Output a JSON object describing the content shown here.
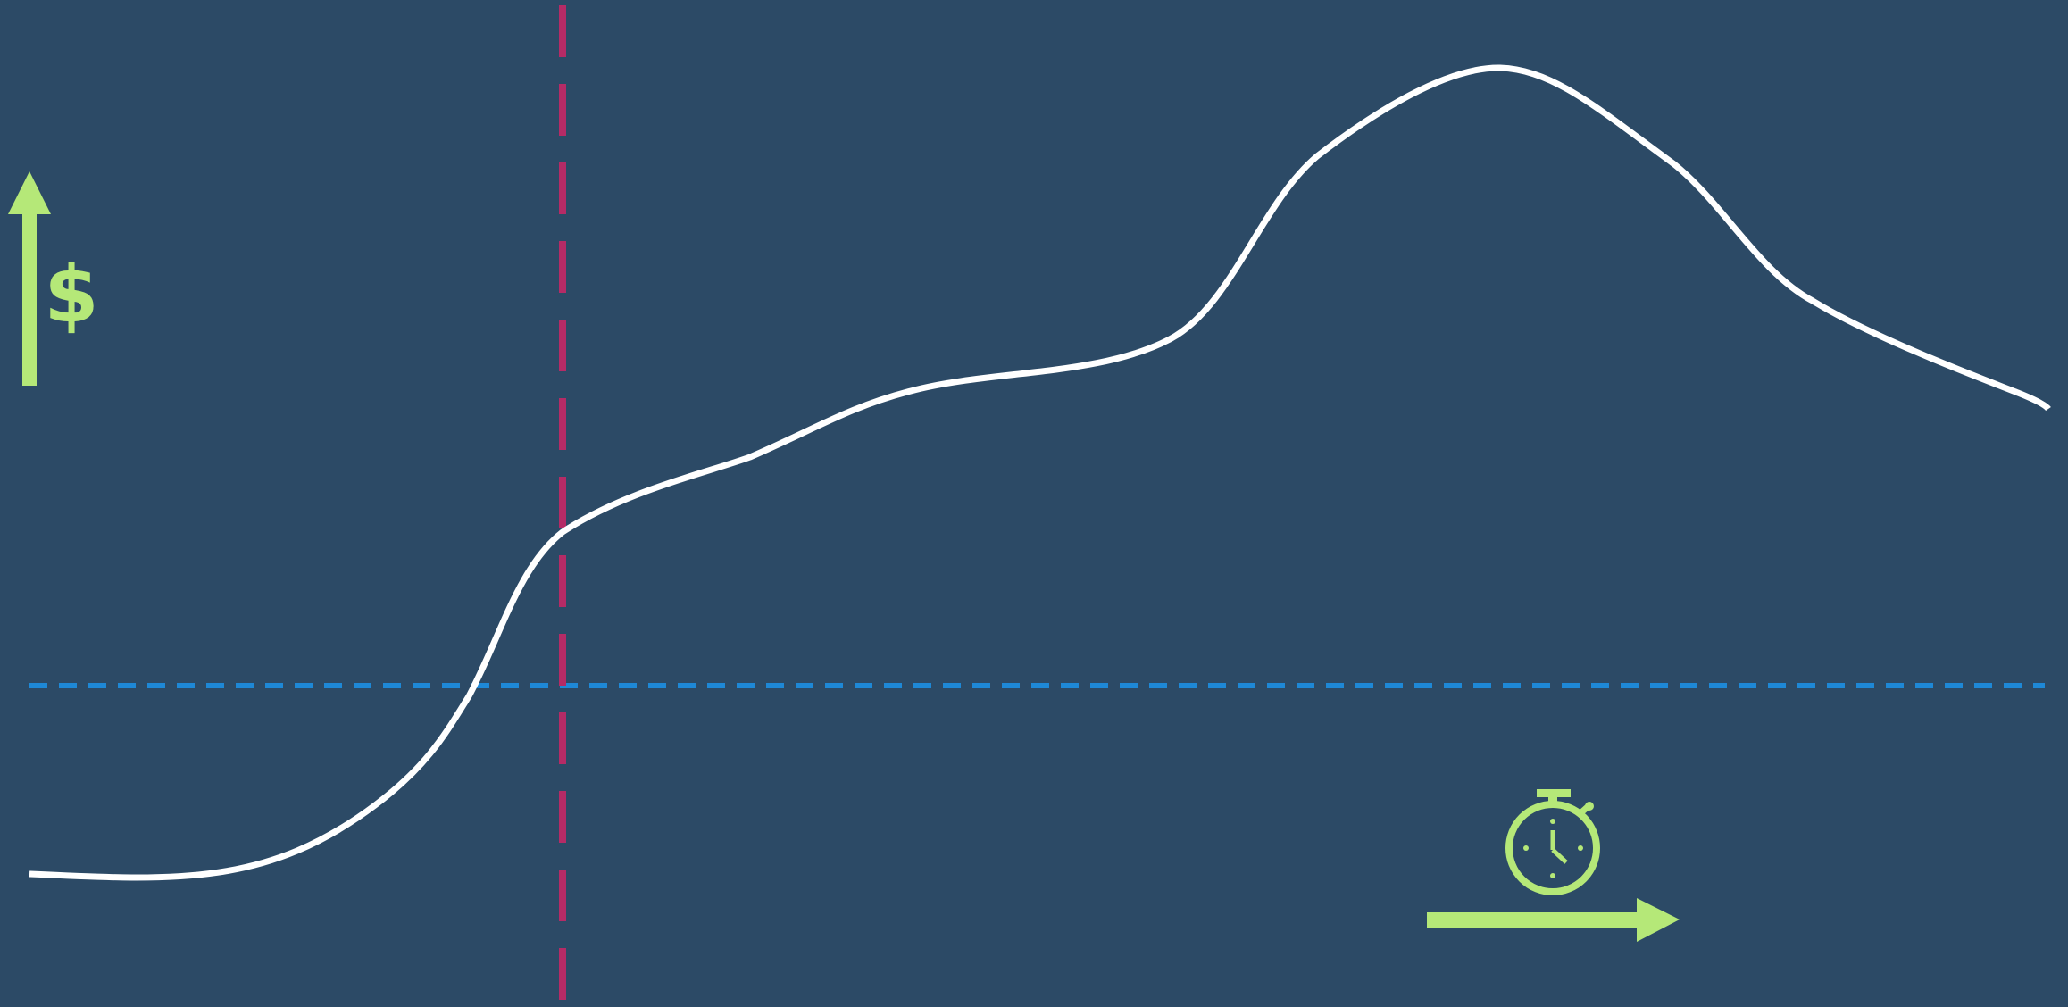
{
  "colors": {
    "background": "#2c4a66",
    "curve": "#ffffff",
    "vertical_marker": "#b52b66",
    "horizontal_baseline": "#1e88d6",
    "accent": "#b5e878"
  },
  "icons": {
    "value_axis": "up-arrow-icon",
    "value_symbol": "dollar-icon",
    "time_symbol": "stopwatch-icon",
    "time_axis": "right-arrow-icon"
  },
  "labels": {
    "value_symbol_text": "$"
  },
  "chart_data": {
    "type": "line",
    "title": "",
    "xlabel": "",
    "ylabel": "",
    "axes_shown": false,
    "grid": false,
    "series": [
      {
        "values": [
          {
            "x": 0.0,
            "y": 0.13
          },
          {
            "x": 0.06,
            "y": 0.12
          },
          {
            "x": 0.12,
            "y": 0.14
          },
          {
            "x": 0.17,
            "y": 0.2
          },
          {
            "x": 0.2,
            "y": 0.28
          },
          {
            "x": 0.24,
            "y": 0.39
          },
          {
            "x": 0.27,
            "y": 0.49
          },
          {
            "x": 0.33,
            "y": 0.56
          },
          {
            "x": 0.45,
            "y": 0.64
          },
          {
            "x": 0.56,
            "y": 0.68
          },
          {
            "x": 0.63,
            "y": 0.83
          },
          {
            "x": 0.72,
            "y": 0.92
          },
          {
            "x": 0.8,
            "y": 0.84
          },
          {
            "x": 0.88,
            "y": 0.71
          },
          {
            "x": 1.0,
            "y": 0.62
          }
        ]
      }
    ],
    "reference_lines": [
      {
        "orientation": "vertical",
        "style": "dashed",
        "x": 0.263
      },
      {
        "orientation": "horizontal",
        "style": "dashed",
        "y": 0.34
      }
    ]
  }
}
